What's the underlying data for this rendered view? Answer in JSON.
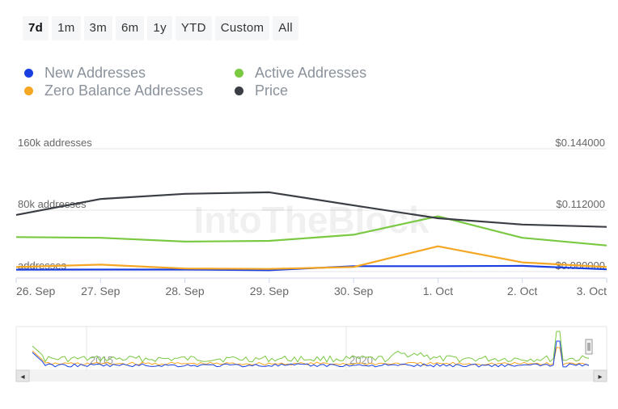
{
  "range_selector": {
    "buttons": [
      "7d",
      "1m",
      "3m",
      "6m",
      "1y",
      "YTD",
      "Custom",
      "All"
    ],
    "active": "7d"
  },
  "legend": {
    "items": [
      {
        "label": "New Addresses",
        "color": "#1a3fe0"
      },
      {
        "label": "Active Addresses",
        "color": "#7ac943"
      },
      {
        "label": "Zero Balance Addresses",
        "color": "#f5a623"
      },
      {
        "label": "Price",
        "color": "#3b3f45"
      }
    ]
  },
  "watermark": "IntoTheBlock",
  "chart_data": {
    "type": "line",
    "title": "",
    "categories": [
      "26. Sep",
      "27. Sep",
      "28. Sep",
      "29. Sep",
      "30. Sep",
      "1. Oct",
      "2. Oct",
      "3. Oct"
    ],
    "y_left": {
      "ticks": [
        "160k addresses",
        "80k addresses",
        "addresses"
      ],
      "ylim": [
        0,
        160000
      ]
    },
    "y_right": {
      "ticks": [
        "$0.144000",
        "$0.112000",
        "$0.080000"
      ],
      "ylim": [
        0.08,
        0.144
      ]
    },
    "series": [
      {
        "name": "New Addresses",
        "axis": "left",
        "color": "#1a3fe0",
        "values": [
          2500,
          2600,
          2600,
          1800,
          7000,
          7000,
          7500,
          3000
        ]
      },
      {
        "name": "Active Addresses",
        "axis": "left",
        "color": "#7ac943",
        "values": [
          45000,
          44000,
          39000,
          40000,
          48000,
          72000,
          44000,
          34000
        ]
      },
      {
        "name": "Zero Balance Addresses",
        "axis": "left",
        "color": "#f5a623",
        "values": [
          6000,
          9000,
          4000,
          3500,
          6000,
          33000,
          12000,
          6000
        ]
      },
      {
        "name": "Price",
        "axis": "right",
        "color": "#3b3f45",
        "values": [
          0.1095,
          0.1178,
          0.1205,
          0.1213,
          0.1145,
          0.1078,
          0.1045,
          0.1033
        ]
      }
    ],
    "navigator": {
      "labels": [
        "2015",
        "2020"
      ],
      "scroll_left": "◂",
      "scroll_right": "▸"
    }
  }
}
